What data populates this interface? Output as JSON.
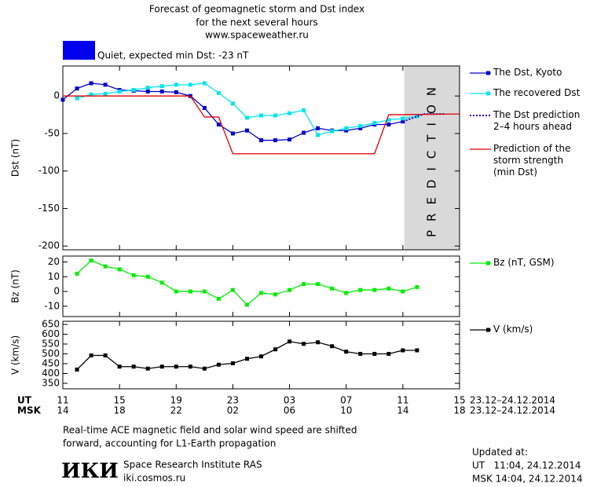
{
  "header": {
    "title_lines": [
      "Forecast of geomagnetic storm and Dst index",
      "for the next several hours",
      "www.spaceweather.ru"
    ],
    "status": {
      "text": "Quiet, expected min Dst: -23 nT",
      "color": "#0000ee"
    }
  },
  "chart_data": [
    {
      "type": "line",
      "ylabel": "Dst (nT)",
      "xlim": [
        0,
        28
      ],
      "ylim": [
        -205,
        40
      ],
      "yticks": [
        0,
        -50,
        -100,
        -150,
        -200
      ],
      "prediction_zone": {
        "xlim": [
          24.1,
          28
        ],
        "label": "PREDICTION",
        "color": "#d9d9d9"
      },
      "series": [
        {
          "name": "The Dst, Kyoto",
          "color": "#0000cc",
          "marker": "square",
          "x": [
            0,
            1,
            2,
            3,
            4,
            5,
            6,
            7,
            8,
            9,
            10,
            11,
            12,
            13,
            14,
            15,
            16,
            17,
            18,
            19,
            20,
            21,
            22,
            23,
            24
          ],
          "values": [
            -5,
            10,
            17,
            15,
            8,
            7,
            6,
            6,
            5,
            0,
            -16,
            -38,
            -50,
            -46,
            -59,
            -59,
            -58,
            -49,
            -43,
            -46,
            -46,
            -43,
            -38,
            -38,
            -34
          ]
        },
        {
          "name": "The recovered Dst",
          "color": "#00e5ee",
          "marker": "square",
          "x": [
            1,
            2,
            3,
            4,
            5,
            6,
            7,
            8,
            9,
            10,
            11,
            12,
            13,
            14,
            15,
            16,
            17,
            18,
            19,
            20,
            21,
            22,
            23,
            24,
            25
          ],
          "values": [
            -3,
            2,
            3,
            6,
            8,
            11,
            13,
            15,
            15,
            17,
            4,
            -10,
            -29,
            -26,
            -26,
            -23,
            -19,
            -52,
            -47,
            -43,
            -40,
            -36,
            -32,
            -30,
            -27
          ]
        },
        {
          "name": "The Dst prediction\n2–4 hours ahead",
          "color": "#0000cc",
          "dash": "dotted",
          "x": [
            24,
            25.5,
            27
          ],
          "values": [
            -34,
            -24,
            -24
          ]
        },
        {
          "name": "Prediction of the\nstorm strength\n(min Dst)",
          "color": "#e00000",
          "x": [
            0,
            9,
            10,
            11,
            12,
            22,
            23,
            28
          ],
          "values": [
            0,
            0,
            -28,
            -28,
            -77,
            -77,
            -25,
            -24
          ]
        }
      ]
    },
    {
      "type": "line",
      "ylabel": "Bz (nT)",
      "xlim": [
        0,
        28
      ],
      "ylim": [
        -17,
        24
      ],
      "yticks": [
        20,
        10,
        0,
        -10
      ],
      "series": [
        {
          "name": "Bz (nT, GSM)",
          "color": "#00ee00",
          "marker": "square",
          "x": [
            1,
            2,
            3,
            4,
            5,
            6,
            7,
            8,
            9,
            10,
            11,
            12,
            13,
            14,
            15,
            16,
            17,
            18,
            19,
            20,
            21,
            22,
            23,
            24,
            25
          ],
          "values": [
            12,
            21,
            17,
            15,
            11,
            10,
            6,
            0,
            0,
            0,
            -5,
            1,
            -9,
            -1,
            -2,
            1,
            5,
            5,
            2,
            -1,
            1,
            1,
            2,
            0,
            3
          ]
        }
      ]
    },
    {
      "type": "line",
      "ylabel": "V (km/s)",
      "xlim": [
        0,
        28
      ],
      "ylim": [
        322,
        666
      ],
      "yticks": [
        350,
        400,
        450,
        500,
        550,
        600,
        650
      ],
      "series": [
        {
          "name": "V (km/s)",
          "color": "#000000",
          "marker": "square",
          "x": [
            1,
            2,
            3,
            4,
            5,
            6,
            7,
            8,
            9,
            10,
            11,
            12,
            13,
            14,
            15,
            16,
            17,
            18,
            19,
            20,
            21,
            22,
            23,
            24,
            25
          ],
          "values": [
            420,
            492,
            492,
            435,
            435,
            425,
            435,
            435,
            435,
            425,
            445,
            452,
            475,
            487,
            523,
            563,
            551,
            559,
            539,
            511,
            500,
            500,
            500,
            518,
            518
          ]
        }
      ],
      "xaxis_labels": [
        "UT",
        "MSK"
      ],
      "xticks": [
        {
          "value": 0,
          "label": "11"
        },
        {
          "value": 4,
          "label": "15"
        },
        {
          "value": 8,
          "label": "19"
        },
        {
          "value": 12,
          "label": "23"
        },
        {
          "value": 16,
          "label": "03"
        },
        {
          "value": 20,
          "label": "07"
        },
        {
          "value": 24,
          "label": "11"
        },
        {
          "value": 28,
          "label": "15"
        }
      ],
      "x2ticks": [
        {
          "value": 0,
          "label": "14"
        },
        {
          "value": 4,
          "label": "18"
        },
        {
          "value": 8,
          "label": "22"
        },
        {
          "value": 12,
          "label": "02"
        },
        {
          "value": 16,
          "label": "06"
        },
        {
          "value": 20,
          "label": "10"
        },
        {
          "value": 24,
          "label": "14"
        },
        {
          "value": 28,
          "label": "18"
        }
      ],
      "date_label": "23.12–24.12.2014"
    }
  ],
  "footer": {
    "note": [
      "Real-time ACE magnetic field and solar wind speed are shifted",
      "forward, accounting for L1-Earth propagation"
    ],
    "logo": "ИКИ",
    "institute": "Space Research Institute RAS",
    "url": "iki.cosmos.ru",
    "updated": [
      "Updated at:",
      "UT   11:04, 24.12.2014",
      "MSK 14:04, 24.12.2014"
    ]
  }
}
